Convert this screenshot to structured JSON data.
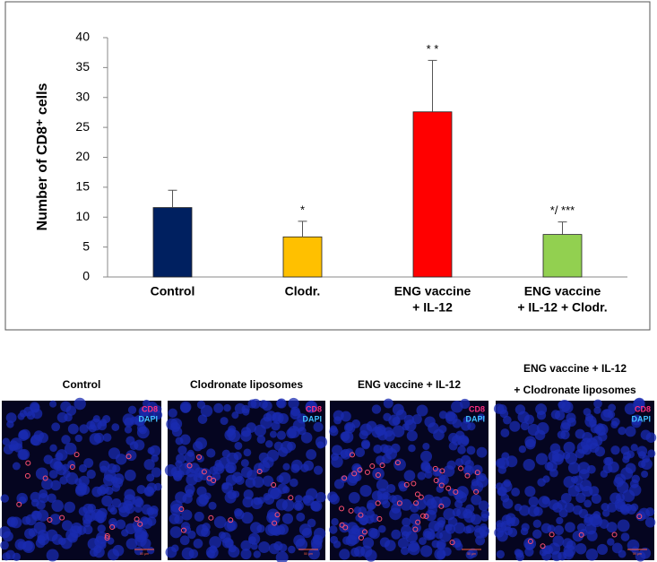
{
  "chart_data": {
    "type": "bar",
    "ylabel": "Number of CD8⁺ cells",
    "categories": [
      [
        "Control"
      ],
      [
        "Clodr."
      ],
      [
        "ENG vaccine",
        "+ IL-12"
      ],
      [
        "ENG vaccine",
        "+ IL-12 + Clodr."
      ]
    ],
    "series": [
      {
        "colors": [
          "#002060",
          "#ffc000",
          "#ff0000",
          "#92d050"
        ],
        "values": [
          11.6,
          6.7,
          27.6,
          7.1
        ],
        "errors": [
          2.9,
          2.6,
          8.6,
          2.1
        ]
      }
    ],
    "annotations": [
      null,
      "*",
      "* *",
      "*/ ***"
    ],
    "ylim": [
      0,
      40
    ],
    "yticks": [
      0,
      5,
      10,
      15,
      20,
      25,
      30,
      35,
      40
    ],
    "grid": false
  },
  "panels": [
    {
      "title": [
        "Control"
      ],
      "labels": [
        "CD8",
        "DAPI"
      ],
      "scale": "50 μm"
    },
    {
      "title": [
        "Clodronate liposomes"
      ],
      "labels": [
        "CD8",
        "DAPI"
      ],
      "scale": "50 μm"
    },
    {
      "title": [
        "ENG vaccine + IL-12"
      ],
      "labels": [
        "CD8",
        "DAPI"
      ],
      "scale": "50 μm"
    },
    {
      "title": [
        "ENG vaccine + IL-12",
        "+ Clodronate liposomes"
      ],
      "labels": [
        "CD8",
        "DAPI"
      ],
      "scale": "50 μm"
    }
  ]
}
